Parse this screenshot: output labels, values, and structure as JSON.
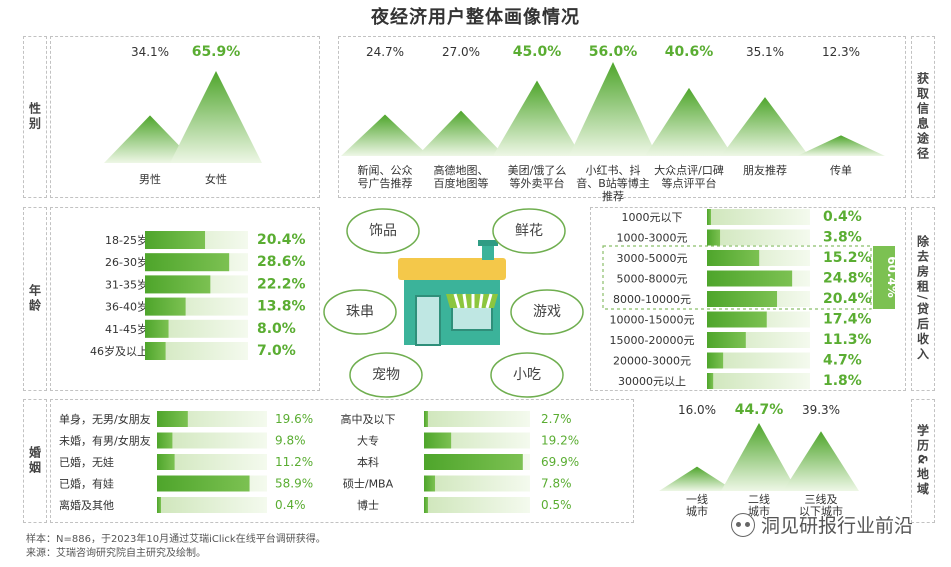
{
  "title": "夜经济用户整体画像情况",
  "section_labels": {
    "gender": "性别",
    "info": "获取信息途径",
    "age": "年龄",
    "income": "除去房租/贷后收入",
    "marriage": "婚姻",
    "edu_region": "学历&地域"
  },
  "center_bubbles": [
    "饰品",
    "鲜花",
    "珠串",
    "游戏",
    "宠物",
    "小吃"
  ],
  "income_bracket_label": "60.4%",
  "footer": {
    "sample": "样本：N=886，于2023年10月通过艾瑞iClick在线平台调研获得。",
    "source": "来源：艾瑞咨询研究院自主研究及绘制。"
  },
  "watermark": "洞见研报行业前沿",
  "colors": {
    "green": "#5aad32",
    "light_green": "#d9ecc8",
    "accent_label": "#7cc152"
  },
  "chart_data": [
    {
      "id": "gender",
      "type": "area",
      "categories": [
        "男性",
        "女性"
      ],
      "labels": [
        "34.1%",
        "65.9%"
      ],
      "values": [
        34.1,
        65.9
      ],
      "highlight": [
        false,
        true
      ]
    },
    {
      "id": "info",
      "type": "area",
      "categories": [
        [
          "新闻、公众",
          "号广告推荐"
        ],
        [
          "高德地图、",
          "百度地图等"
        ],
        [
          "美团/饿了么",
          "等外卖平台"
        ],
        [
          "小红书、抖",
          "音、B站等博主",
          "推荐"
        ],
        [
          "大众点评/口碑",
          "等点评平台"
        ],
        [
          "朋友推荐"
        ],
        [
          "传单"
        ]
      ],
      "labels": [
        "24.7%",
        "27.0%",
        "45.0%",
        "56.0%",
        "40.6%",
        "35.1%",
        "12.3%"
      ],
      "values": [
        24.7,
        27.0,
        45.0,
        56.0,
        40.6,
        35.1,
        12.3
      ],
      "highlight": [
        false,
        false,
        true,
        true,
        true,
        false,
        false
      ]
    },
    {
      "id": "age",
      "type": "bar",
      "categories": [
        "18-25岁",
        "26-30岁",
        "31-35岁",
        "36-40岁",
        "41-45岁",
        "46岁及以上"
      ],
      "labels": [
        "20.4%",
        "28.6%",
        "22.2%",
        "13.8%",
        "8.0%",
        "7.0%"
      ],
      "values": [
        20.4,
        28.6,
        22.2,
        13.8,
        8.0,
        7.0
      ],
      "max": 35
    },
    {
      "id": "income",
      "type": "bar",
      "categories": [
        "1000元以下",
        "1000-3000元",
        "3000-5000元",
        "5000-8000元",
        "8000-10000元",
        "10000-15000元",
        "15000-20000元",
        "20000-3000元",
        "30000元以上"
      ],
      "labels": [
        "0.4%",
        "3.8%",
        "15.2%",
        "24.8%",
        "20.4%",
        "17.4%",
        "11.3%",
        "4.7%",
        "1.8%"
      ],
      "values": [
        0.4,
        3.8,
        15.2,
        24.8,
        20.4,
        17.4,
        11.3,
        4.7,
        1.8
      ],
      "max": 30
    },
    {
      "id": "marriage",
      "type": "bar",
      "categories": [
        "单身，无男/女朋友",
        "未婚，有男/女朋友",
        "已婚，无娃",
        "已婚，有娃",
        "离婚及其他"
      ],
      "labels": [
        "19.6%",
        "9.8%",
        "11.2%",
        "58.9%",
        "0.4%"
      ],
      "values": [
        19.6,
        9.8,
        11.2,
        58.9,
        0.4
      ],
      "max": 70
    },
    {
      "id": "education",
      "type": "bar",
      "categories": [
        "高中及以下",
        "大专",
        "本科",
        "硕士/MBA",
        "博士"
      ],
      "labels": [
        "2.7%",
        "19.2%",
        "69.9%",
        "7.8%",
        "0.5%"
      ],
      "values": [
        2.7,
        19.2,
        69.9,
        7.8,
        0.5
      ],
      "max": 75
    },
    {
      "id": "region",
      "type": "area",
      "categories": [
        [
          "一线",
          "城市"
        ],
        [
          "二线",
          "城市"
        ],
        [
          "三线及",
          "以下城市"
        ]
      ],
      "labels": [
        "16.0%",
        "44.7%",
        "39.3%"
      ],
      "values": [
        16.0,
        44.7,
        39.3
      ],
      "highlight": [
        false,
        true,
        false
      ]
    }
  ]
}
